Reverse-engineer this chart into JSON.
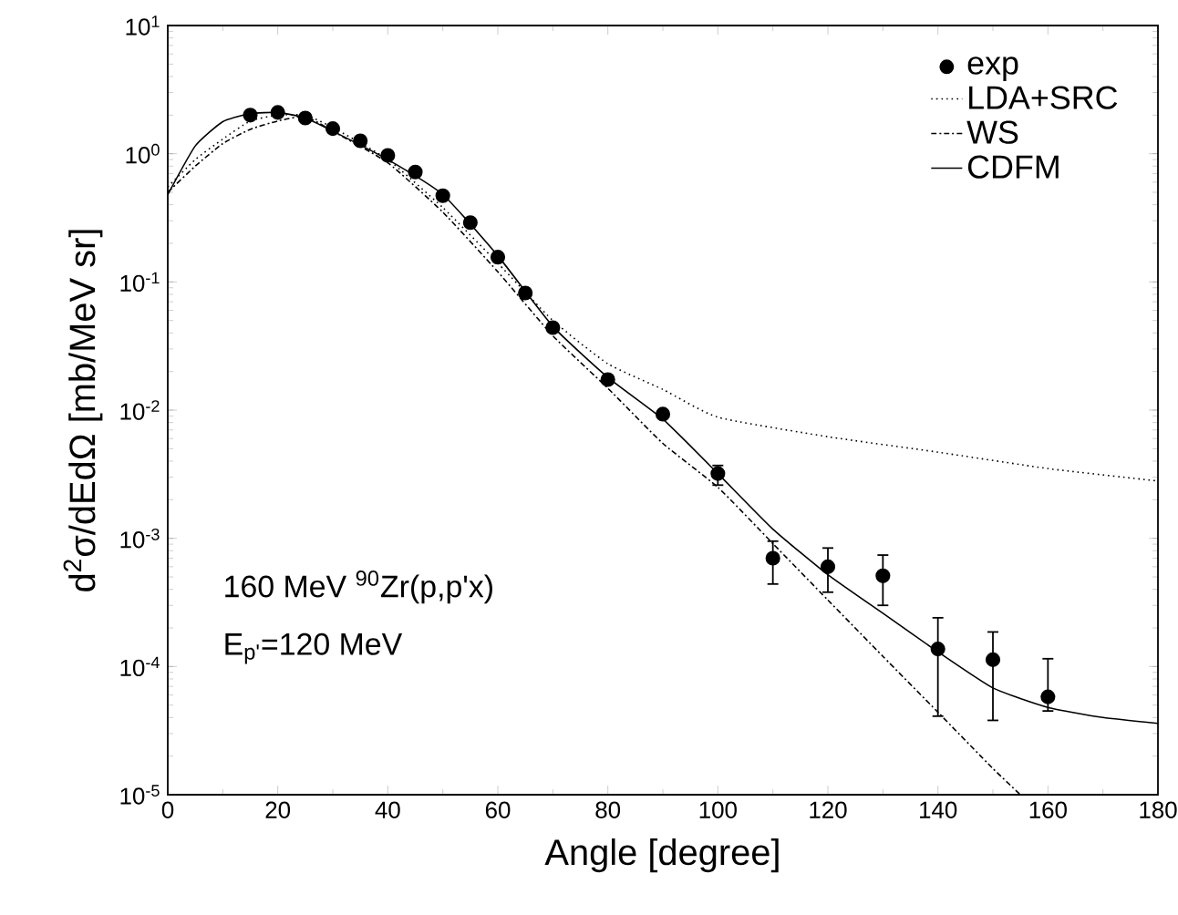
{
  "chart_data": {
    "type": "line",
    "xlabel": "Angle [degree]",
    "ylabel": "d$^{2}$σ/dEdΩ [mb/MeV sr]",
    "xlim": [
      0,
      180
    ],
    "xticks": [
      0,
      20,
      40,
      60,
      80,
      100,
      120,
      140,
      160,
      180
    ],
    "ylim": [
      1e-05,
      10
    ],
    "yticks": [
      {
        "value": 1e-05,
        "label": "10$^{-5}$"
      },
      {
        "value": 0.0001,
        "label": "10$^{-4}$"
      },
      {
        "value": 0.001,
        "label": "10$^{-3}$"
      },
      {
        "value": 0.01,
        "label": "10$^{-2}$"
      },
      {
        "value": 0.1,
        "label": "10$^{-1}$"
      },
      {
        "value": 1,
        "label": "10$^{0}$"
      },
      {
        "value": 10,
        "label": "10$^{1}$"
      }
    ],
    "log": "y",
    "grid": false,
    "marker": "circle",
    "legend": "top right",
    "series": [
      {
        "name": "exp",
        "type": "scatter",
        "color": "#000000",
        "x": [
          15,
          20,
          25,
          30,
          35,
          40,
          45,
          50,
          55,
          60,
          65,
          70,
          80,
          90,
          100,
          110,
          120,
          130,
          140,
          150,
          160
        ],
        "values": [
          2.0,
          2.1,
          1.9,
          1.57,
          1.26,
          0.97,
          0.72,
          0.47,
          0.29,
          0.156,
          0.082,
          0.044,
          0.0173,
          0.0093,
          0.0032,
          0.0007,
          0.0006,
          0.00051,
          0.000137,
          0.000113,
          5.8e-05
        ],
        "errors": [
          null,
          null,
          null,
          null,
          null,
          null,
          null,
          null,
          null,
          null,
          null,
          null,
          null,
          null,
          [
            0.0026,
            0.0037
          ],
          [
            0.00044,
            0.00095
          ],
          [
            0.00038,
            0.00084
          ],
          [
            0.0003,
            0.00074
          ],
          [
            4.1e-05,
            0.00024
          ],
          [
            3.8e-05,
            0.000186
          ],
          [
            4.5e-05,
            0.000115
          ]
        ]
      },
      {
        "name": "LDA+SRC",
        "marker": "none",
        "line_style": "dotted",
        "color": "#000000",
        "x": [
          0,
          5,
          10,
          15,
          20,
          25,
          30,
          40,
          50,
          60,
          70,
          80,
          90,
          100,
          120,
          140,
          160,
          180
        ],
        "values": [
          0.55,
          0.9,
          1.3,
          1.8,
          2.0,
          2.0,
          1.6,
          0.9,
          0.38,
          0.14,
          0.05,
          0.023,
          0.0145,
          0.0088,
          0.0062,
          0.0047,
          0.0035,
          0.0028
        ]
      },
      {
        "name": "WS",
        "marker": "none",
        "line_style": "dashdot",
        "color": "#000000",
        "x": [
          0,
          5,
          10,
          15,
          20,
          25,
          30,
          40,
          50,
          60,
          70,
          80,
          90,
          100,
          110,
          120,
          130,
          140,
          150,
          155
        ],
        "values": [
          0.5,
          0.8,
          1.2,
          1.55,
          1.8,
          1.95,
          1.5,
          0.85,
          0.35,
          0.12,
          0.038,
          0.0148,
          0.0055,
          0.0025,
          0.00091,
          0.00033,
          0.00012,
          4.4e-05,
          1.6e-05,
          1e-05
        ]
      },
      {
        "name": "CDFM",
        "marker": "none",
        "line_style": "solid",
        "color": "#000000",
        "x": [
          0,
          5,
          10,
          15,
          20,
          25,
          30,
          40,
          50,
          60,
          70,
          80,
          90,
          100,
          110,
          120,
          130,
          140,
          150,
          160,
          170,
          180
        ],
        "values": [
          0.48,
          1.15,
          1.78,
          2.05,
          2.1,
          1.9,
          1.5,
          0.9,
          0.48,
          0.16,
          0.045,
          0.018,
          0.0085,
          0.0032,
          0.00118,
          0.00052,
          0.00026,
          0.00013,
          6.8e-05,
          4.8e-05,
          4e-05,
          3.6e-05
        ]
      }
    ],
    "annotations": [
      "160 MeV $^{90}$Zr(p,p'x)",
      "E$_{p'}$=120 MeV"
    ]
  }
}
